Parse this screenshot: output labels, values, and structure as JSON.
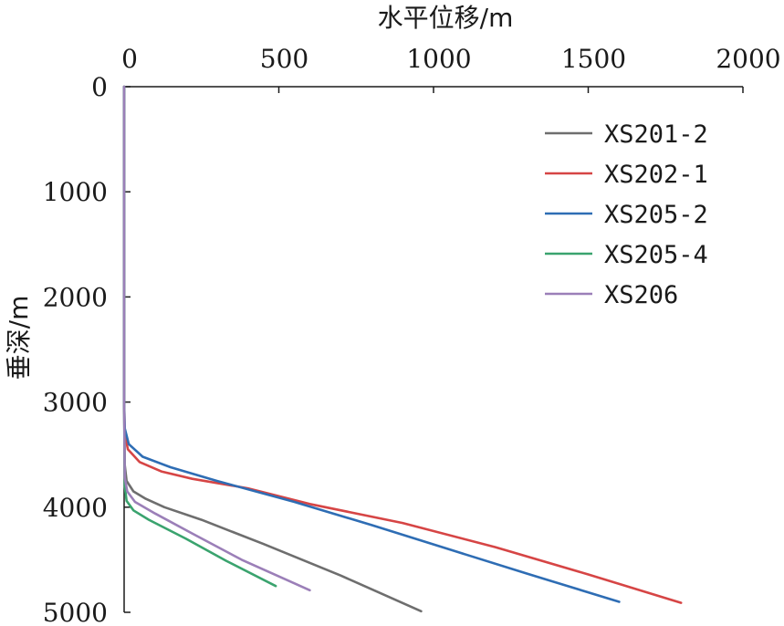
{
  "chart_data": {
    "type": "line",
    "title": "",
    "xlabel": "水平位移/m",
    "ylabel": "垂深/m",
    "xlim": [
      0,
      2000
    ],
    "ylim": [
      0,
      5000
    ],
    "y_inverted": true,
    "x_axis_position": "top",
    "x_ticks": [
      "0",
      "500",
      "1000",
      "1500",
      "2000"
    ],
    "y_ticks": [
      "0",
      "1000",
      "2000",
      "3000",
      "4000",
      "5000"
    ],
    "grid": false,
    "legend_position": "top-right",
    "series": [
      {
        "name": "XS201-2",
        "color": "#6e6e6e",
        "points": [
          [
            0,
            0
          ],
          [
            0,
            1000
          ],
          [
            0,
            2000
          ],
          [
            0,
            3000
          ],
          [
            2,
            3600
          ],
          [
            8,
            3750
          ],
          [
            30,
            3850
          ],
          [
            70,
            3920
          ],
          [
            130,
            4000
          ],
          [
            250,
            4120
          ],
          [
            450,
            4350
          ],
          [
            700,
            4650
          ],
          [
            960,
            4990
          ]
        ]
      },
      {
        "name": "XS202-1",
        "color": "#d64545",
        "points": [
          [
            0,
            0
          ],
          [
            0,
            1000
          ],
          [
            0,
            2000
          ],
          [
            0,
            3000
          ],
          [
            2,
            3300
          ],
          [
            12,
            3450
          ],
          [
            50,
            3570
          ],
          [
            120,
            3660
          ],
          [
            220,
            3730
          ],
          [
            400,
            3820
          ],
          [
            600,
            3970
          ],
          [
            900,
            4150
          ],
          [
            1200,
            4380
          ],
          [
            1500,
            4640
          ],
          [
            1800,
            4910
          ]
        ]
      },
      {
        "name": "XS205-2",
        "color": "#2e6db4",
        "points": [
          [
            0,
            0
          ],
          [
            0,
            1000
          ],
          [
            0,
            2000
          ],
          [
            0,
            3000
          ],
          [
            2,
            3250
          ],
          [
            15,
            3400
          ],
          [
            60,
            3520
          ],
          [
            150,
            3620
          ],
          [
            300,
            3750
          ],
          [
            550,
            3950
          ],
          [
            800,
            4170
          ],
          [
            1050,
            4400
          ],
          [
            1300,
            4630
          ],
          [
            1600,
            4900
          ]
        ]
      },
      {
        "name": "XS205-4",
        "color": "#3aa36e",
        "points": [
          [
            0,
            0
          ],
          [
            0,
            1000
          ],
          [
            0,
            2000
          ],
          [
            0,
            3000
          ],
          [
            2,
            3800
          ],
          [
            8,
            3940
          ],
          [
            30,
            4030
          ],
          [
            80,
            4120
          ],
          [
            200,
            4300
          ],
          [
            330,
            4510
          ],
          [
            490,
            4750
          ]
        ]
      },
      {
        "name": "XS206",
        "color": "#9b7fb8",
        "points": [
          [
            0,
            0
          ],
          [
            0,
            1000
          ],
          [
            0,
            2000
          ],
          [
            0,
            3000
          ],
          [
            2,
            3720
          ],
          [
            10,
            3850
          ],
          [
            35,
            3950
          ],
          [
            100,
            4060
          ],
          [
            220,
            4250
          ],
          [
            380,
            4500
          ],
          [
            600,
            4790
          ]
        ]
      }
    ]
  }
}
